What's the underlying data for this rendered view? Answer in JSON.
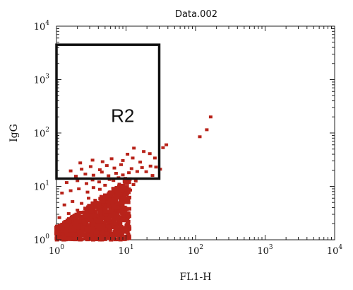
{
  "chart_data": {
    "type": "scatter",
    "title": "Data.002",
    "xlabel": "FL1-H",
    "ylabel": "IgG",
    "x_scale": "log",
    "y_scale": "log",
    "xlim": [
      1,
      10000
    ],
    "ylim": [
      1,
      10000
    ],
    "grid": false,
    "point_color": "#b8231a",
    "x_ticks": [
      {
        "base": "10",
        "exp": "0"
      },
      {
        "base": "10",
        "exp": "1"
      },
      {
        "base": "10",
        "exp": "2"
      },
      {
        "base": "10",
        "exp": "3"
      },
      {
        "base": "10",
        "exp": "4"
      }
    ],
    "y_ticks": [
      {
        "base": "10",
        "exp": "0"
      },
      {
        "base": "10",
        "exp": "1"
      },
      {
        "base": "10",
        "exp": "2"
      },
      {
        "base": "10",
        "exp": "3"
      },
      {
        "base": "10",
        "exp": "4"
      }
    ],
    "gate": {
      "label": "R2",
      "x_range": [
        1,
        30
      ],
      "y_range": [
        14,
        4500
      ]
    },
    "points": [
      [
        1.2,
        1.3
      ],
      [
        1.4,
        1.6
      ],
      [
        1.8,
        1.4
      ],
      [
        2.2,
        2.0
      ],
      [
        2.6,
        1.7
      ],
      [
        3.0,
        2.4
      ],
      [
        3.5,
        1.5
      ],
      [
        4.0,
        2.2
      ],
      [
        1.1,
        2.6
      ],
      [
        1.5,
        3.1
      ],
      [
        2.0,
        3.6
      ],
      [
        2.5,
        2.9
      ],
      [
        3.2,
        3.3
      ],
      [
        4.5,
        3.0
      ],
      [
        5.2,
        2.6
      ],
      [
        6.0,
        3.8
      ],
      [
        1.3,
        4.5
      ],
      [
        1.7,
        5.2
      ],
      [
        2.3,
        4.8
      ],
      [
        2.9,
        6.0
      ],
      [
        3.6,
        5.5
      ],
      [
        4.4,
        6.5
      ],
      [
        5.5,
        5.0
      ],
      [
        7.0,
        6.8
      ],
      [
        1.2,
        7.5
      ],
      [
        1.6,
        8.3
      ],
      [
        2.1,
        9.0
      ],
      [
        2.8,
        7.8
      ],
      [
        3.4,
        9.5
      ],
      [
        4.2,
        8.8
      ],
      [
        5.0,
        10.5
      ],
      [
        6.5,
        9.2
      ],
      [
        8.0,
        11.0
      ],
      [
        9.5,
        12.5
      ],
      [
        1.4,
        11.8
      ],
      [
        2.0,
        12.8
      ],
      [
        2.7,
        11.3
      ],
      [
        3.3,
        13.2
      ],
      [
        4.1,
        12.1
      ],
      [
        5.8,
        13.5
      ],
      [
        1.9,
        15.5
      ],
      [
        2.6,
        17.0
      ],
      [
        3.4,
        16.2
      ],
      [
        4.5,
        18.5
      ],
      [
        5.6,
        15.8
      ],
      [
        7.2,
        17.6
      ],
      [
        9.0,
        16.4
      ],
      [
        11.0,
        18.0
      ],
      [
        1.6,
        19.5
      ],
      [
        2.3,
        21.0
      ],
      [
        3.1,
        23.5
      ],
      [
        4.2,
        20.5
      ],
      [
        5.3,
        24.5
      ],
      [
        6.8,
        22.0
      ],
      [
        8.5,
        25.5
      ],
      [
        12.0,
        21.5
      ],
      [
        14.5,
        19.0
      ],
      [
        17.0,
        22.5
      ],
      [
        19.5,
        18.8
      ],
      [
        22.5,
        24.0
      ],
      [
        2.2,
        27.5
      ],
      [
        3.3,
        31.0
      ],
      [
        4.6,
        29.0
      ],
      [
        6.2,
        33.0
      ],
      [
        9.0,
        30.5
      ],
      [
        12.5,
        34.0
      ],
      [
        16.0,
        28.5
      ],
      [
        10.5,
        40.0
      ],
      [
        22.0,
        41.0
      ],
      [
        18.0,
        45.0
      ],
      [
        13.0,
        52.0
      ],
      [
        26.0,
        34.0
      ],
      [
        24.0,
        16.0
      ],
      [
        27.0,
        23.0
      ],
      [
        34.0,
        53.0
      ],
      [
        38.0,
        60.0
      ],
      [
        31.0,
        21.0
      ],
      [
        115.0,
        85.0
      ],
      [
        145.0,
        115.0
      ],
      [
        165.0,
        200.0
      ],
      [
        1.3,
        1.9
      ],
      [
        2.4,
        1.2
      ],
      [
        3.8,
        1.8
      ],
      [
        5.8,
        1.6
      ],
      [
        7.5,
        2.4
      ],
      [
        1.9,
        2.3
      ],
      [
        4.8,
        4.2
      ],
      [
        6.3,
        4.6
      ],
      [
        8.3,
        5.6
      ],
      [
        10.2,
        7.2
      ],
      [
        11.5,
        8.5
      ],
      [
        12.8,
        10.8
      ],
      [
        13.8,
        12.6
      ],
      [
        7.8,
        14.5
      ],
      [
        9.8,
        14.1
      ],
      [
        6.6,
        12.9
      ]
    ]
  }
}
